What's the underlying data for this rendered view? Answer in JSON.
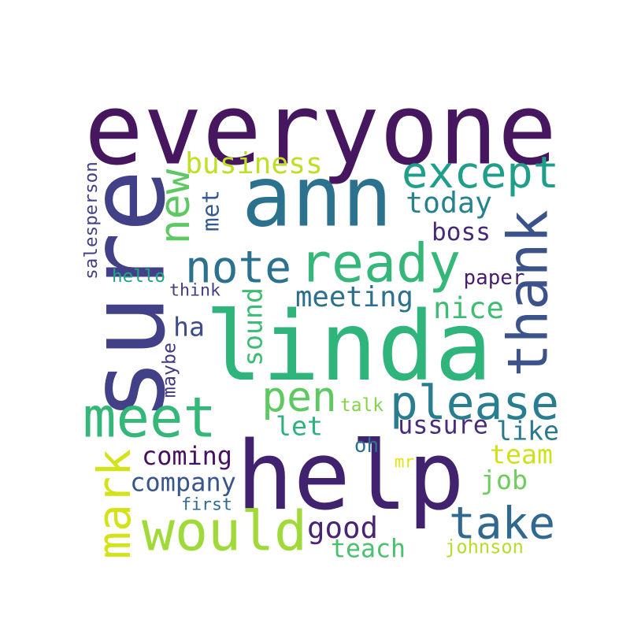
{
  "wordcloud": {
    "words": [
      {
        "text": "everyone",
        "color": "#46175f"
      },
      {
        "text": "linda",
        "color": "#2fb47c"
      },
      {
        "text": "help",
        "color": "#40226f"
      },
      {
        "text": "ann",
        "color": "#2c728e"
      },
      {
        "text": "sure",
        "color": "#424086"
      },
      {
        "text": "ready",
        "color": "#35b779"
      },
      {
        "text": "thank",
        "color": "#3b528b"
      },
      {
        "text": "meet",
        "color": "#35b779"
      },
      {
        "text": "would",
        "color": "#a0da39"
      },
      {
        "text": "please",
        "color": "#287d8e"
      },
      {
        "text": "except",
        "color": "#1f9e89"
      },
      {
        "text": "note",
        "color": "#2c728e"
      },
      {
        "text": "take",
        "color": "#31688e"
      },
      {
        "text": "mark",
        "color": "#d4e21a"
      },
      {
        "text": "new",
        "color": "#5ec962"
      },
      {
        "text": "pen",
        "color": "#5ec962"
      },
      {
        "text": "business",
        "color": "#bddf26"
      },
      {
        "text": "today",
        "color": "#26828e"
      },
      {
        "text": "meeting",
        "color": "#2d708e"
      },
      {
        "text": "nice",
        "color": "#3fbc73"
      },
      {
        "text": "boss",
        "color": "#482878"
      },
      {
        "text": "met",
        "color": "#365c8d"
      },
      {
        "text": "sound",
        "color": "#3dbc74"
      },
      {
        "text": "ha",
        "color": "#3e4c8a"
      },
      {
        "text": "let",
        "color": "#2db27d"
      },
      {
        "text": "ussure",
        "color": "#472d7b"
      },
      {
        "text": "like",
        "color": "#2a788e"
      },
      {
        "text": "coming",
        "color": "#471063"
      },
      {
        "text": "company",
        "color": "#39568c"
      },
      {
        "text": "team",
        "color": "#d0e11c"
      },
      {
        "text": "job",
        "color": "#6ccd5a"
      },
      {
        "text": "good",
        "color": "#482475"
      },
      {
        "text": "teach",
        "color": "#4ac16d"
      },
      {
        "text": "johnson",
        "color": "#b5de2b"
      },
      {
        "text": "first",
        "color": "#2f6b8e"
      },
      {
        "text": "oh",
        "color": "#2c728e"
      },
      {
        "text": "mr",
        "color": "#e2e418"
      },
      {
        "text": "talk",
        "color": "#84d44b"
      },
      {
        "text": "hello",
        "color": "#20a486"
      },
      {
        "text": "think",
        "color": "#433e85"
      },
      {
        "text": "paper",
        "color": "#481c6e"
      },
      {
        "text": "salesperson",
        "color": "#424086"
      },
      {
        "text": "maybe",
        "color": "#443983"
      }
    ]
  }
}
